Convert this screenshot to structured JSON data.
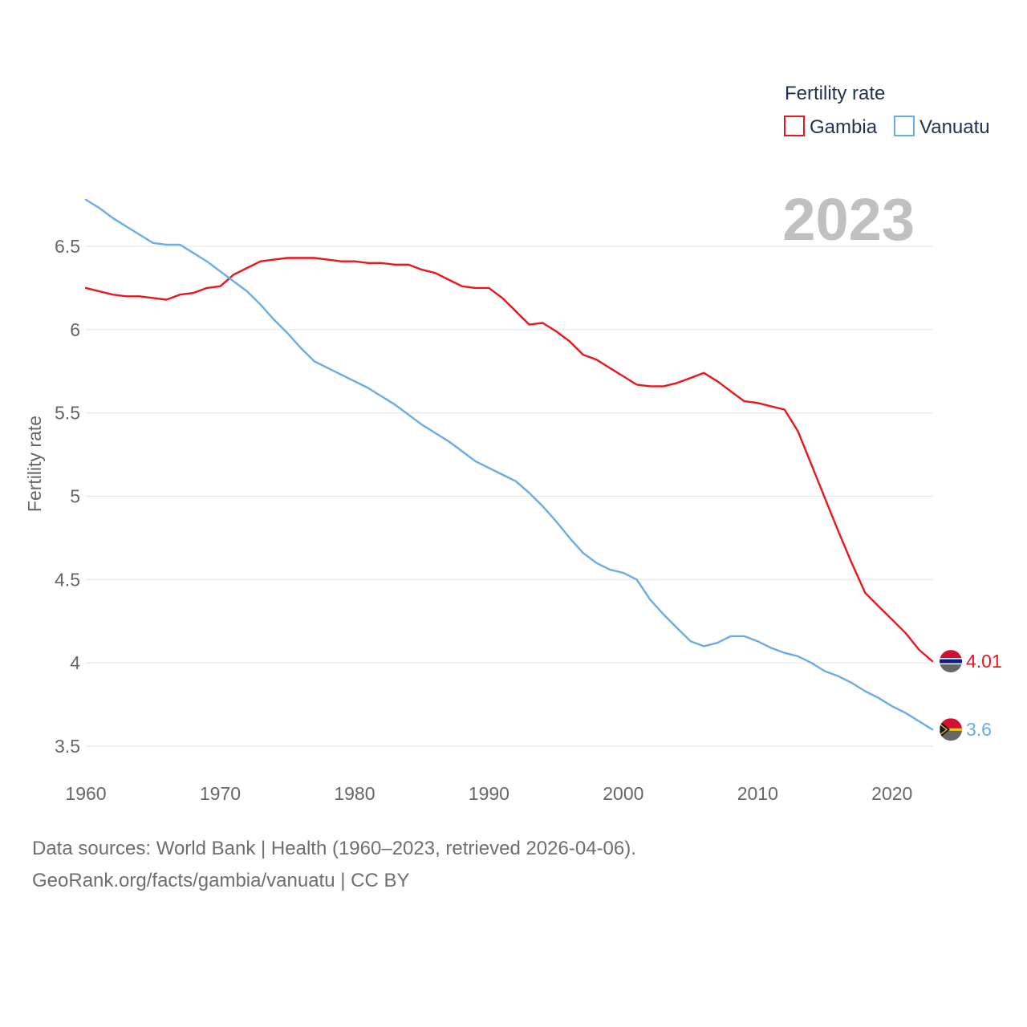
{
  "chart_data": {
    "type": "line",
    "ylabel": "Fertility rate",
    "xlabel": "",
    "ylim": [
      3.4,
      6.85
    ],
    "xlim": [
      1960,
      2023
    ],
    "x_ticks": [
      1960,
      1970,
      1980,
      1990,
      2000,
      2010,
      2020
    ],
    "y_ticks": [
      3.5,
      4,
      4.5,
      5,
      5.5,
      6,
      6.5
    ],
    "y_tick_labels": [
      "3.5",
      "4",
      "4.5",
      "5",
      "5.5",
      "6",
      "6.5"
    ],
    "grid": true,
    "legend": {
      "title": "Fertility rate",
      "position": "top-right"
    },
    "year_label": "2023",
    "x": [
      1960,
      1961,
      1962,
      1963,
      1964,
      1965,
      1966,
      1967,
      1968,
      1969,
      1970,
      1971,
      1972,
      1973,
      1974,
      1975,
      1976,
      1977,
      1978,
      1979,
      1980,
      1981,
      1982,
      1983,
      1984,
      1985,
      1986,
      1987,
      1988,
      1989,
      1990,
      1991,
      1992,
      1993,
      1994,
      1995,
      1996,
      1997,
      1998,
      1999,
      2000,
      2001,
      2002,
      2003,
      2004,
      2005,
      2006,
      2007,
      2008,
      2009,
      2010,
      2011,
      2012,
      2013,
      2014,
      2015,
      2016,
      2017,
      2018,
      2019,
      2020,
      2021,
      2022,
      2023
    ],
    "series": [
      {
        "name": "Gambia",
        "color": "#e8171e",
        "end_label": "4.01",
        "values": [
          6.25,
          6.23,
          6.21,
          6.2,
          6.2,
          6.19,
          6.18,
          6.21,
          6.22,
          6.25,
          6.26,
          6.33,
          6.37,
          6.41,
          6.42,
          6.43,
          6.43,
          6.43,
          6.42,
          6.41,
          6.41,
          6.4,
          6.4,
          6.39,
          6.39,
          6.36,
          6.34,
          6.3,
          6.26,
          6.25,
          6.25,
          6.19,
          6.11,
          6.03,
          6.04,
          5.99,
          5.93,
          5.85,
          5.82,
          5.77,
          5.72,
          5.67,
          5.66,
          5.66,
          5.68,
          5.71,
          5.74,
          5.69,
          5.63,
          5.57,
          5.56,
          5.54,
          5.52,
          5.39,
          5.19,
          4.99,
          4.79,
          4.6,
          4.42,
          4.34,
          4.26,
          4.18,
          4.08,
          4.01
        ]
      },
      {
        "name": "Vanuatu",
        "color": "#6aace5",
        "end_label": "3.6",
        "values": [
          6.78,
          6.73,
          6.67,
          6.62,
          6.57,
          6.52,
          6.51,
          6.51,
          6.46,
          6.41,
          6.35,
          6.29,
          6.23,
          6.15,
          6.06,
          5.98,
          5.89,
          5.81,
          5.77,
          5.73,
          5.69,
          5.65,
          5.6,
          5.55,
          5.49,
          5.43,
          5.38,
          5.33,
          5.27,
          5.21,
          5.17,
          5.13,
          5.09,
          5.02,
          4.94,
          4.85,
          4.75,
          4.66,
          4.6,
          4.56,
          4.54,
          4.5,
          4.38,
          4.29,
          4.21,
          4.13,
          4.1,
          4.12,
          4.16,
          4.16,
          4.13,
          4.09,
          4.06,
          4.04,
          4.0,
          3.95,
          3.92,
          3.88,
          3.83,
          3.79,
          3.74,
          3.7,
          3.65,
          3.6
        ]
      }
    ]
  },
  "footer": {
    "line1": "Data sources: World Bank | Health (1960–2023, retrieved 2026-04-06).",
    "line2": "GeoRank.org/facts/gambia/vanuatu | CC BY"
  }
}
